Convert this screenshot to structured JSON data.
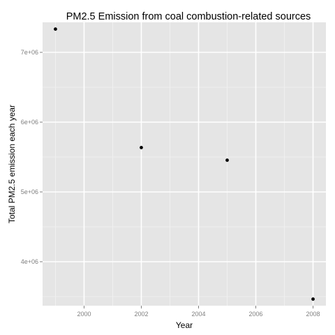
{
  "chart_data": {
    "type": "scatter",
    "title": "PM2.5 Emission from coal combustion-related sources",
    "xlabel": "Year",
    "ylabel": "Total PM2.5 emission each year",
    "x": [
      1999,
      2002,
      2005,
      2008
    ],
    "y": [
      7332967,
      5636049,
      5454700,
      3464206
    ],
    "xlim": [
      1998.55,
      2008.45
    ],
    "ylim": [
      3370000,
      7430000
    ],
    "x_ticks": [
      2000,
      2002,
      2004,
      2006,
      2008
    ],
    "x_tick_labels": [
      "2000",
      "2002",
      "2004",
      "2006",
      "2008"
    ],
    "y_ticks": [
      4000000,
      5000000,
      6000000,
      7000000
    ],
    "y_tick_labels": [
      "4e+06",
      "5e+06",
      "6e+06",
      "7e+06"
    ],
    "grid": true,
    "legend": "none",
    "colors": {
      "panel_background": "#e5e5e5",
      "grid_major": "#ffffff",
      "grid_minor": "#f2f2f2",
      "point": "#000000",
      "tick_label": "#7f7f7f"
    }
  }
}
